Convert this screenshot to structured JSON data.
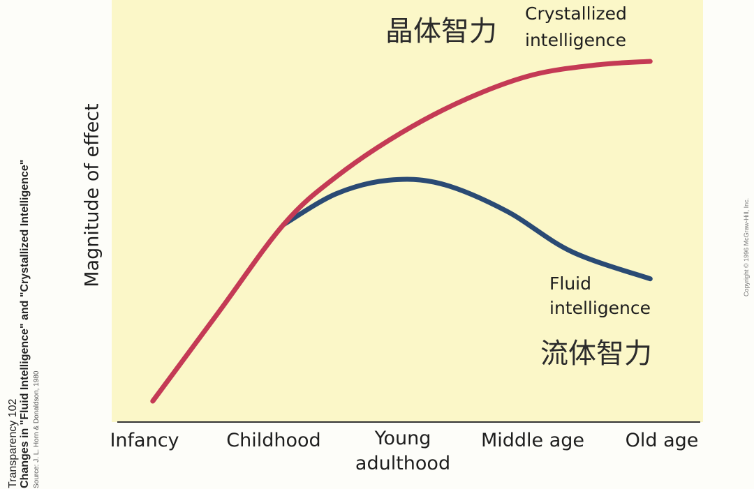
{
  "chart_data": {
    "type": "line",
    "categories": [
      "Infancy",
      "Childhood",
      "Young adulthood",
      "Middle age",
      "Old age"
    ],
    "category_lines": [
      [
        "Infancy"
      ],
      [
        "Childhood"
      ],
      [
        "Young",
        "adulthood"
      ],
      [
        "Middle age"
      ],
      [
        "Old age"
      ]
    ],
    "ylabel": "Magnitude of effect",
    "xlim": [
      0,
      4
    ],
    "ylim": [
      0,
      1
    ],
    "series": [
      {
        "name": "Crystallized intelligence",
        "name_cn": "晶体智力",
        "color": "#c43a55",
        "points": [
          [
            0.1,
            0.0
          ],
          [
            0.6,
            0.26
          ],
          [
            1.1,
            0.52
          ],
          [
            1.5,
            0.66
          ],
          [
            2.0,
            0.79
          ],
          [
            2.5,
            0.89
          ],
          [
            3.0,
            0.96
          ],
          [
            3.5,
            0.99
          ],
          [
            3.9,
            1.0
          ]
        ]
      },
      {
        "name": "Fluid intelligence",
        "name_cn": "流体智力",
        "color": "#2a4a74",
        "points": [
          [
            1.1,
            0.52
          ],
          [
            1.5,
            0.61
          ],
          [
            1.9,
            0.65
          ],
          [
            2.3,
            0.64
          ],
          [
            2.8,
            0.56
          ],
          [
            3.3,
            0.44
          ],
          [
            3.9,
            0.36
          ]
        ]
      }
    ],
    "grid": false,
    "legend": "inline-labels"
  },
  "side_text_left": {
    "line1": "Transparency 102",
    "line2": "Changes in \"Fluid Intelligence\" and \"Crystallized Intelligence\"",
    "line3": "Source: J. L. Horn & Donaldson, 1980"
  },
  "side_text_right": "Copyright © 1996 McGraw-Hill, Inc.",
  "colors": {
    "plot_background": "#fbf7c8",
    "axis": "#333333"
  }
}
